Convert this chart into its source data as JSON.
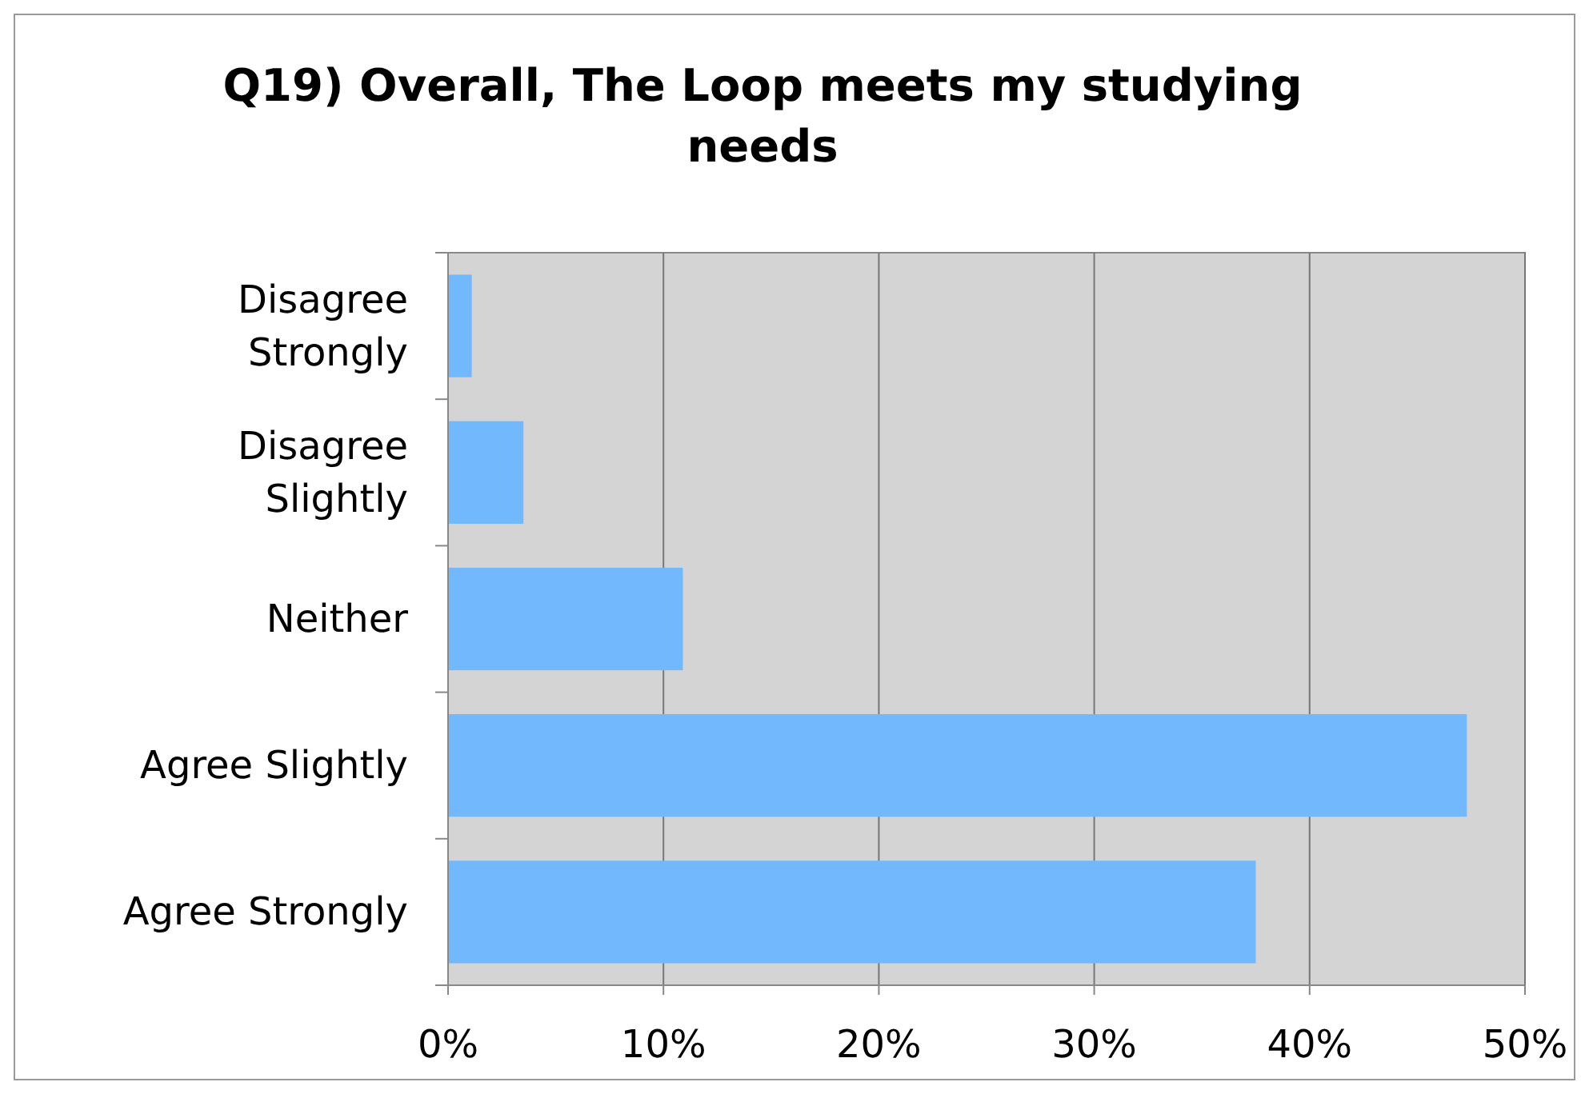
{
  "chart_data": {
    "type": "bar",
    "orientation": "horizontal",
    "title": "Q19) Overall, The Loop meets my studying needs",
    "categories": [
      "Disagree Strongly",
      "Disagree Slightly",
      "Neither",
      "Agree Slightly",
      "Agree Strongly"
    ],
    "values": [
      1.1,
      3.5,
      10.9,
      47.3,
      37.5
    ],
    "color": "#72b8fc",
    "xlim": [
      0,
      50
    ],
    "xticks": [
      {
        "value": 0,
        "label": "0%"
      },
      {
        "value": 10,
        "label": "10%"
      },
      {
        "value": 20,
        "label": "20%"
      },
      {
        "value": 30,
        "label": "30%"
      },
      {
        "value": 40,
        "label": "40%"
      },
      {
        "value": 50,
        "label": "50%"
      }
    ],
    "grid": "x"
  }
}
